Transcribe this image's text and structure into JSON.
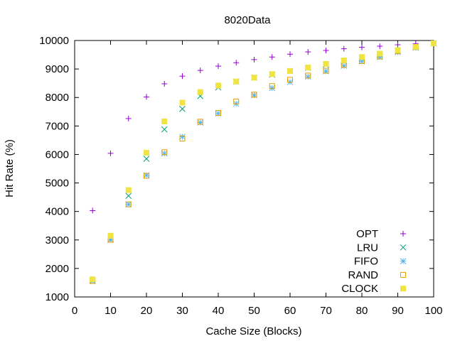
{
  "chart_data": {
    "type": "scatter",
    "title": "8020Data",
    "xlabel": "Cache Size (Blocks)",
    "ylabel": "Hit Rate (%)",
    "xlim": [
      0,
      100
    ],
    "ylim": [
      1000,
      10000
    ],
    "xticks": [
      0,
      10,
      20,
      30,
      40,
      50,
      60,
      70,
      80,
      90,
      100
    ],
    "yticks": [
      1000,
      2000,
      3000,
      4000,
      5000,
      6000,
      7000,
      8000,
      9000,
      10000
    ],
    "grid": false,
    "legend_position": "bottom-right",
    "x": [
      5,
      10,
      15,
      20,
      25,
      30,
      35,
      40,
      45,
      50,
      55,
      60,
      65,
      70,
      75,
      80,
      85,
      90,
      95,
      100
    ],
    "series": [
      {
        "name": "OPT",
        "marker": "plus",
        "color": "#9400d3",
        "values": [
          4030,
          6040,
          7260,
          8020,
          8480,
          8750,
          8950,
          9100,
          9220,
          9330,
          9420,
          9520,
          9600,
          9650,
          9710,
          9760,
          9800,
          9850,
          9890,
          9900
        ]
      },
      {
        "name": "LRU",
        "marker": "cross",
        "color": "#009e73",
        "values": [
          1560,
          3010,
          4550,
          5850,
          6880,
          7600,
          8050,
          8350,
          8560,
          8700,
          8800,
          8930,
          9040,
          9150,
          9270,
          9380,
          9500,
          9640,
          9760,
          9900
        ]
      },
      {
        "name": "FIFO",
        "marker": "star",
        "color": "#56b4e9",
        "values": [
          1560,
          3010,
          4250,
          5270,
          6040,
          6620,
          7120,
          7440,
          7780,
          8080,
          8330,
          8540,
          8730,
          8920,
          9110,
          9270,
          9420,
          9590,
          9750,
          9900
        ]
      },
      {
        "name": "RAND",
        "marker": "open-square",
        "color": "#e69f00",
        "values": [
          1560,
          3010,
          4250,
          5250,
          6080,
          6560,
          7150,
          7460,
          7860,
          8100,
          8400,
          8620,
          8770,
          8940,
          9150,
          9280,
          9440,
          9630,
          9770,
          9900
        ]
      },
      {
        "name": "CLOCK",
        "marker": "filled-square",
        "color": "#f0e442",
        "values": [
          1620,
          3150,
          4750,
          6060,
          7160,
          7820,
          8190,
          8420,
          8560,
          8700,
          8820,
          8930,
          9050,
          9180,
          9300,
          9420,
          9540,
          9660,
          9780,
          9900
        ]
      }
    ]
  }
}
